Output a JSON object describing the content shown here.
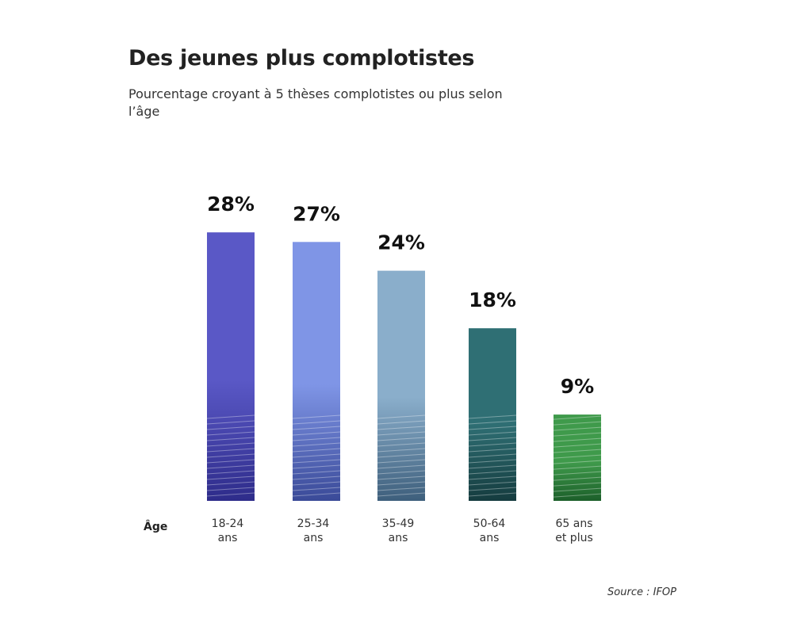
{
  "chart_data": {
    "type": "bar",
    "title": "Des jeunes plus complotistes",
    "subtitle": "Pourcentage croyant à 5 thèses complotistes ou plus selon l’âge",
    "xlabel": "Âge",
    "ylabel": "",
    "categories": [
      "18-24 ans",
      "25-34 ans",
      "35-49 ans",
      "50-64 ans",
      "65 ans et plus"
    ],
    "category_lines": [
      [
        "18-24",
        "ans"
      ],
      [
        "25-34",
        "ans"
      ],
      [
        "35-49",
        "ans"
      ],
      [
        "50-64",
        "ans"
      ],
      [
        "65 ans",
        "et plus"
      ]
    ],
    "values": [
      28,
      27,
      24,
      18,
      9
    ],
    "value_labels": [
      "28%",
      "27%",
      "24%",
      "18%",
      "9%"
    ],
    "ylim": [
      0,
      30
    ],
    "grid": false,
    "bar_colors": [
      "#5a58c6",
      "#7f95e6",
      "#8aaecb",
      "#2f6f74",
      "#3f9a4b"
    ],
    "bar_dark_colors": [
      "#2e2c8a",
      "#3a4a98",
      "#3e5f7c",
      "#153c3f",
      "#1c5f2a"
    ],
    "source": "Source : IFOP"
  }
}
